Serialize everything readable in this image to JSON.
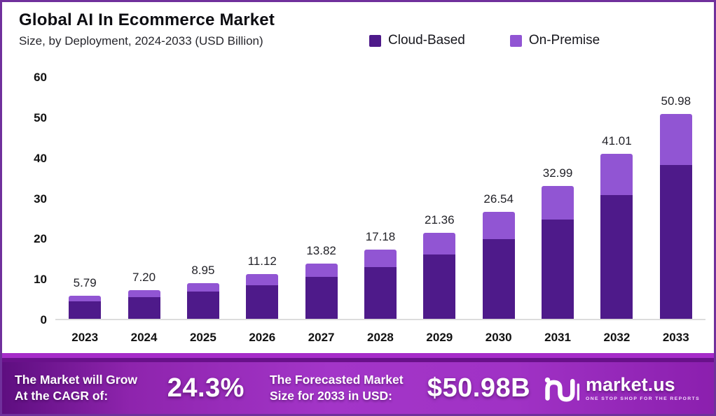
{
  "page": {
    "title": "Global AI In Ecommerce Market",
    "subtitle": "Size, by Deployment, 2024-2033 (USD Billion)"
  },
  "legend": {
    "items": [
      {
        "label": "Cloud-Based",
        "color": "#4E1A8A"
      },
      {
        "label": "On-Premise",
        "color": "#9155D3"
      }
    ]
  },
  "chart_data": {
    "type": "bar",
    "stacked": true,
    "title": "Global AI In Ecommerce Market Size, by Deployment, 2024-2033 (USD Billion)",
    "categories": [
      "2023",
      "2024",
      "2025",
      "2026",
      "2027",
      "2028",
      "2029",
      "2030",
      "2031",
      "2032",
      "2033"
    ],
    "series": [
      {
        "name": "Cloud-Based",
        "color": "#4E1A8A",
        "values": [
          4.34,
          5.4,
          6.71,
          8.34,
          10.37,
          12.89,
          16.02,
          19.91,
          24.74,
          30.76,
          38.24
        ]
      },
      {
        "name": "On-Premise",
        "color": "#9155D3",
        "values": [
          1.45,
          1.8,
          2.24,
          2.78,
          3.45,
          4.29,
          5.34,
          6.63,
          8.25,
          10.25,
          12.74
        ]
      }
    ],
    "totals": [
      5.79,
      7.2,
      8.95,
      11.12,
      13.82,
      17.18,
      21.36,
      26.54,
      32.99,
      41.01,
      50.98
    ],
    "total_labels": [
      "5.79",
      "7.20",
      "8.95",
      "11.12",
      "13.82",
      "17.18",
      "21.36",
      "26.54",
      "32.99",
      "41.01",
      "50.98"
    ],
    "xlabel": "",
    "ylabel": "",
    "ylim": [
      0,
      60
    ],
    "yticks": [
      0,
      10,
      20,
      30,
      40,
      50,
      60
    ],
    "grid": false,
    "legend_position": "top-right"
  },
  "footer": {
    "cagr_label_line1": "The Market will Grow",
    "cagr_label_line2": "At the CAGR of:",
    "cagr_value": "24.3%",
    "forecast_label_line1": "The Forecasted Market",
    "forecast_label_line2": "Size for 2033 in USD:",
    "forecast_value": "$50.98B",
    "brand_name": "market.us",
    "brand_tagline": "ONE STOP SHOP FOR THE REPORTS"
  },
  "colors": {
    "cloud_based": "#4E1A8A",
    "on_premise": "#9155D3",
    "page_border": "#70309c",
    "footer_gradient_start": "#5e0e80",
    "footer_gradient_mid": "#a335c8",
    "footer_gradient_end": "#8b1fae",
    "axis_line": "#dcdcdc"
  }
}
